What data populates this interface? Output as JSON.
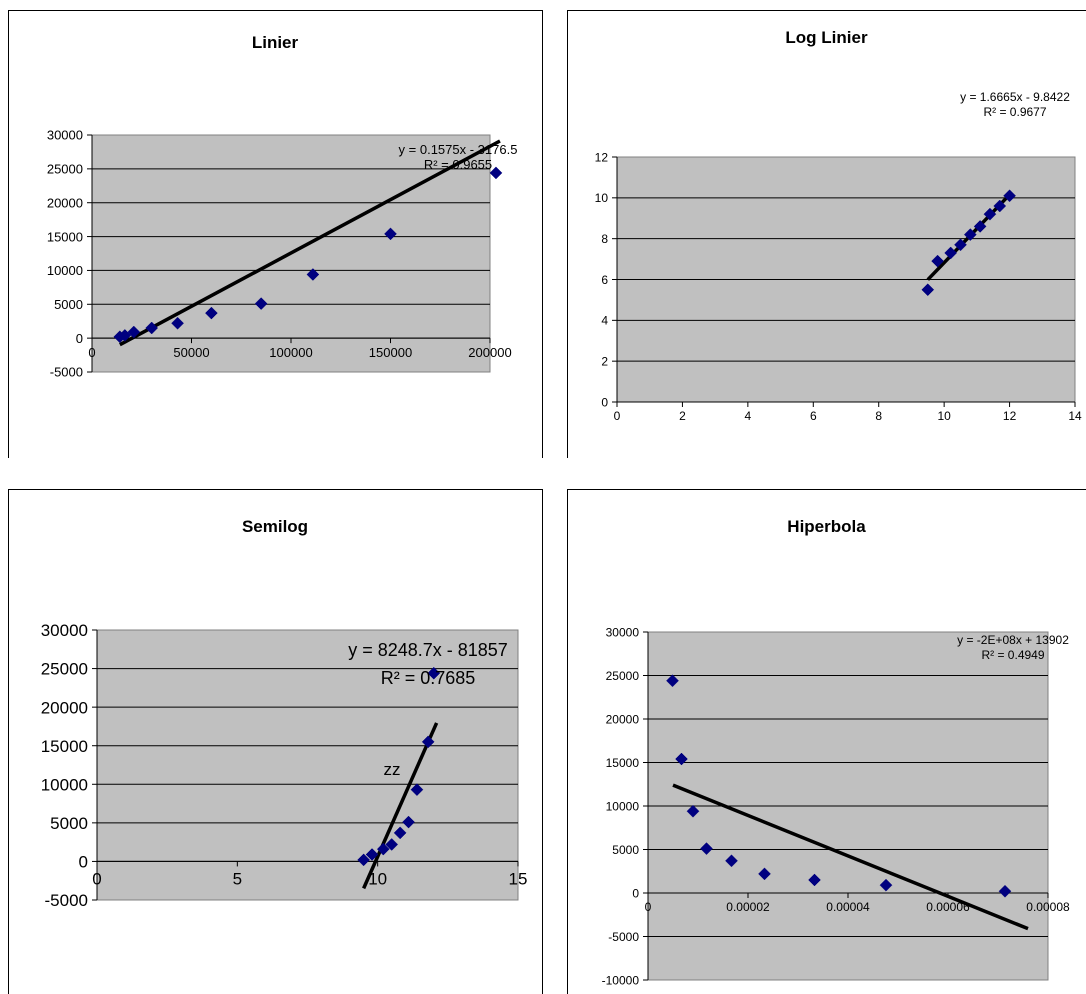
{
  "colors": {
    "plot_bg": "#c0c0c0",
    "marker": "#000080",
    "trendline": "#000000",
    "grid": "#000000"
  },
  "chart_data": [
    {
      "type": "scatter",
      "title": "Linier",
      "xlim": [
        0,
        200000
      ],
      "ylim": [
        -5000,
        30000
      ],
      "xticks": [
        "0",
        "50000",
        "100000",
        "150000",
        "200000"
      ],
      "yticks": [
        "-5000",
        "0",
        "5000",
        "10000",
        "15000",
        "20000",
        "25000",
        "30000"
      ],
      "grid": "horizontal",
      "series": [
        {
          "points": [
            [
              14000,
              200
            ],
            [
              16500,
              400
            ],
            [
              21000,
              900
            ],
            [
              30000,
              1500
            ],
            [
              43000,
              2200
            ],
            [
              60000,
              3700
            ],
            [
              85000,
              5100
            ],
            [
              111000,
              9400
            ],
            [
              150000,
              15400
            ],
            [
              203000,
              24400
            ]
          ]
        }
      ],
      "trendline": {
        "x": [
          14000,
          205000
        ],
        "slope": 0.1575,
        "intercept": -3176.5
      },
      "equation": "y = 0.1575x - 3176.5",
      "r2": "R² = 0.9655"
    },
    {
      "type": "scatter",
      "title": "Log Linier",
      "xlim": [
        0,
        14
      ],
      "ylim": [
        0,
        12
      ],
      "xticks": [
        "0",
        "2",
        "4",
        "6",
        "8",
        "10",
        "12",
        "14"
      ],
      "yticks": [
        "0",
        "2",
        "4",
        "6",
        "8",
        "10",
        "12"
      ],
      "grid": "horizontal",
      "series": [
        {
          "points": [
            [
              9.5,
              5.5
            ],
            [
              9.8,
              6.9
            ],
            [
              10.2,
              7.3
            ],
            [
              10.5,
              7.7
            ],
            [
              10.8,
              8.2
            ],
            [
              11.1,
              8.6
            ],
            [
              11.4,
              9.2
            ],
            [
              11.7,
              9.6
            ],
            [
              12.0,
              10.1
            ]
          ]
        }
      ],
      "trendline": {
        "x": [
          9.5,
          12.0
        ],
        "slope": 1.6665,
        "intercept": -9.8422
      },
      "equation": "y = 1.6665x - 9.8422",
      "r2": "R² = 0.9677"
    },
    {
      "type": "scatter",
      "title": "Semilog",
      "xlim": [
        0,
        15
      ],
      "ylim": [
        -5000,
        30000
      ],
      "xticks": [
        "0",
        "5",
        "10",
        "15"
      ],
      "yticks": [
        "-5000",
        "0",
        "5000",
        "10000",
        "15000",
        "20000",
        "25000",
        "30000"
      ],
      "grid": "horizontal",
      "series": [
        {
          "points": [
            [
              9.5,
              200
            ],
            [
              9.8,
              900
            ],
            [
              10.2,
              1600
            ],
            [
              10.5,
              2200
            ],
            [
              10.8,
              3700
            ],
            [
              11.1,
              5100
            ],
            [
              11.4,
              9300
            ],
            [
              11.8,
              15500
            ],
            [
              12.0,
              24400
            ]
          ]
        }
      ],
      "trendline": {
        "x": [
          9.5,
          12.1
        ],
        "slope": 8248.7,
        "intercept": -81857
      },
      "equation": "y = 8248.7x - 81857",
      "r2": "R² = 0.7685",
      "annotation": "zz"
    },
    {
      "type": "scatter",
      "title": "Hiperbola",
      "xlim": [
        0,
        8e-05
      ],
      "ylim": [
        -10000,
        30000
      ],
      "xticks": [
        "0",
        "0.00002",
        "0.00004",
        "0.00006",
        "0.00008"
      ],
      "yticks": [
        "-10000",
        "-5000",
        "0",
        "5000",
        "10000",
        "15000",
        "20000",
        "25000",
        "30000"
      ],
      "grid": "horizontal",
      "series": [
        {
          "points": [
            [
              4.9e-06,
              24400
            ],
            [
              6.7e-06,
              15400
            ],
            [
              9e-06,
              9400
            ],
            [
              1.17e-05,
              5100
            ],
            [
              1.67e-05,
              3700
            ],
            [
              2.33e-05,
              2200
            ],
            [
              3.33e-05,
              1500
            ],
            [
              4.76e-05,
              900
            ],
            [
              7.14e-05,
              200
            ]
          ]
        }
      ],
      "trendline": {
        "x": [
          5e-06,
          7.6e-05
        ],
        "y": [
          12400,
          -4100
        ]
      },
      "equation": "y = -2E+08x + 13902",
      "r2": "R² = 0.4949"
    }
  ]
}
